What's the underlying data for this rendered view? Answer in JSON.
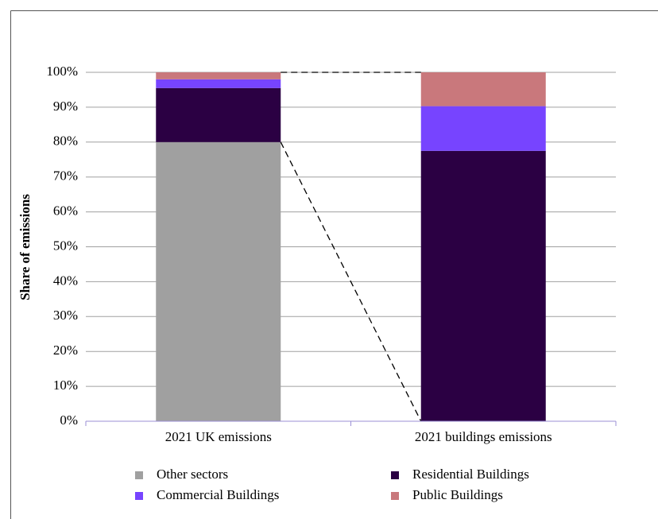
{
  "chart_data": {
    "type": "stacked_bar",
    "ylabel": "Share of emissions",
    "categories": [
      "2021 UK emissions",
      "2021 buildings emissions"
    ],
    "series": [
      {
        "name": "Other sectors",
        "color": "#a0a0a0",
        "values": [
          80,
          0
        ]
      },
      {
        "name": "Residential Buildings",
        "color": "#2b0043",
        "values": [
          15.5,
          77.5
        ]
      },
      {
        "name": "Commercial Buildings",
        "color": "#7744ff",
        "values": [
          2.5,
          12.8
        ]
      },
      {
        "name": "Public Buildings",
        "color": "#c9787c",
        "values": [
          2.0,
          9.7
        ]
      }
    ],
    "ylim": [
      0,
      100
    ],
    "yticks": [
      {
        "value": 0,
        "label": "0%"
      },
      {
        "value": 10,
        "label": "10%"
      },
      {
        "value": 20,
        "label": "20%"
      },
      {
        "value": 30,
        "label": "30%"
      },
      {
        "value": 40,
        "label": "40%"
      },
      {
        "value": 50,
        "label": "50%"
      },
      {
        "value": 60,
        "label": "60%"
      },
      {
        "value": 70,
        "label": "70%"
      },
      {
        "value": 80,
        "label": "80%"
      },
      {
        "value": 90,
        "label": "90%"
      },
      {
        "value": 100,
        "label": "100%"
      }
    ],
    "grid": true
  }
}
